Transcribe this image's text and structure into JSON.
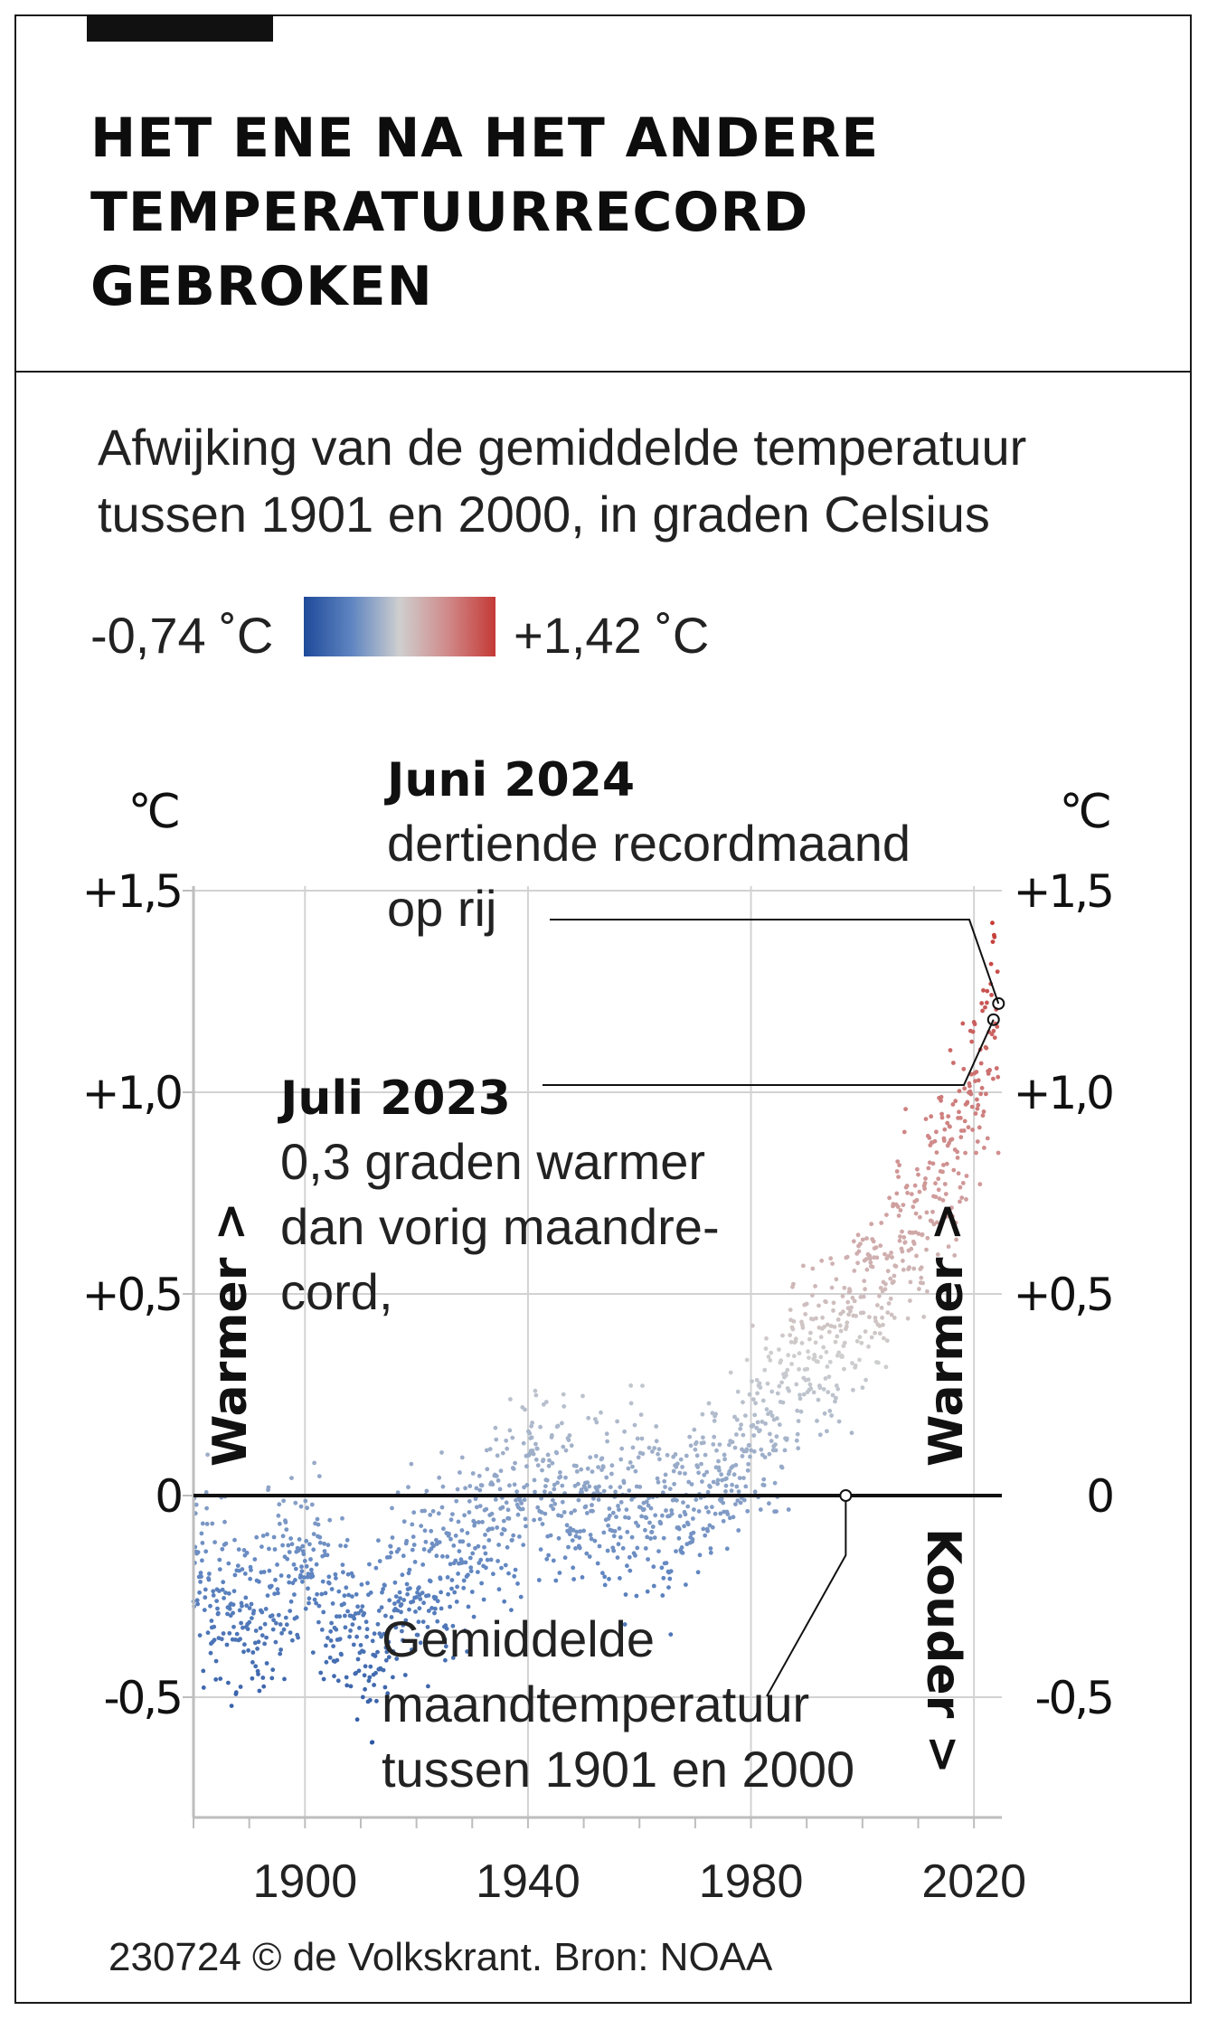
{
  "header": {
    "title": "HET ENE NA HET ANDERE\nTEMPERATUURRECORD\nGEBROKEN",
    "subtitle": "Afwijking van de gemiddelde temperatuur\ntussen 1901 en 2000, in graden Celsius"
  },
  "legend": {
    "min_label": "-0,74 ˚C",
    "max_label": "+1,42 ˚C",
    "min_value": -0.74,
    "max_value": 1.42,
    "gradient_colors": [
      "#1e4a9a",
      "#5f85c1",
      "#cfcfcf",
      "#d08a8a",
      "#c43a36"
    ]
  },
  "credit": "230724  © de Volkskrant. Bron: NOAA",
  "chart_data": {
    "type": "scatter",
    "unit_label": "℃",
    "x_range": [
      1880,
      2025
    ],
    "ylim": [
      -0.8,
      1.5
    ],
    "x_ticks": [
      {
        "value": 1900,
        "label": "1900"
      },
      {
        "value": 1940,
        "label": "1940"
      },
      {
        "value": 1980,
        "label": "1980"
      },
      {
        "value": 2020,
        "label": "2020"
      }
    ],
    "y_ticks_left": [
      {
        "value": 1.5,
        "label": "+1,5"
      },
      {
        "value": 1.0,
        "label": "+1,0"
      },
      {
        "value": 0.5,
        "label": "+0,5"
      },
      {
        "value": 0,
        "label": "0"
      },
      {
        "value": -0.5,
        "label": "-0,5"
      }
    ],
    "y_ticks_right": [
      {
        "value": 1.5,
        "label": "+1,5"
      },
      {
        "value": 1.0,
        "label": "+1,0"
      },
      {
        "value": 0.5,
        "label": "+0,5"
      },
      {
        "value": 0,
        "label": "0"
      },
      {
        "value": -0.5,
        "label": "-0,5"
      }
    ],
    "grid": true,
    "baseline_value": 0,
    "direction_labels": {
      "warmer": "Warmer >",
      "colder": "Kouder >"
    },
    "series_note": "one point per month; monthly anomaly vs 1901-2000 average",
    "annual_trend": [
      {
        "year": 1880,
        "value": -0.17
      },
      {
        "year": 1885,
        "value": -0.25
      },
      {
        "year": 1890,
        "value": -0.3
      },
      {
        "year": 1895,
        "value": -0.22
      },
      {
        "year": 1900,
        "value": -0.12
      },
      {
        "year": 1905,
        "value": -0.3
      },
      {
        "year": 1910,
        "value": -0.38
      },
      {
        "year": 1915,
        "value": -0.22
      },
      {
        "year": 1920,
        "value": -0.22
      },
      {
        "year": 1925,
        "value": -0.2
      },
      {
        "year": 1930,
        "value": -0.12
      },
      {
        "year": 1935,
        "value": -0.08
      },
      {
        "year": 1940,
        "value": 0.08
      },
      {
        "year": 1945,
        "value": 0.05
      },
      {
        "year": 1950,
        "value": -0.06
      },
      {
        "year": 1955,
        "value": -0.04
      },
      {
        "year": 1960,
        "value": 0.0
      },
      {
        "year": 1965,
        "value": -0.06
      },
      {
        "year": 1970,
        "value": 0.0
      },
      {
        "year": 1975,
        "value": 0.0
      },
      {
        "year": 1980,
        "value": 0.2
      },
      {
        "year": 1985,
        "value": 0.2
      },
      {
        "year": 1990,
        "value": 0.36
      },
      {
        "year": 1995,
        "value": 0.38
      },
      {
        "year": 2000,
        "value": 0.46
      },
      {
        "year": 2005,
        "value": 0.6
      },
      {
        "year": 2010,
        "value": 0.64
      },
      {
        "year": 2015,
        "value": 0.86
      },
      {
        "year": 2020,
        "value": 0.98
      },
      {
        "year": 2023,
        "value": 1.18
      }
    ],
    "annotations": [
      {
        "key": "june2024",
        "head": "Juni 2024",
        "lines": [
          "dertiende recordmaand",
          "op rij"
        ],
        "x": 2024.4,
        "y": 1.22
      },
      {
        "key": "july2023",
        "head": "Juli 2023",
        "lines": [
          "0,3 graden warmer",
          "dan vorig maandre-",
          "cord,"
        ],
        "x": 2023.5,
        "y": 1.18
      },
      {
        "key": "baseline",
        "head": "",
        "lines": [
          "Gemiddelde",
          "maandtemperatuur",
          "tussen 1901 en 2000"
        ],
        "x": 1997,
        "y": 0
      }
    ]
  }
}
